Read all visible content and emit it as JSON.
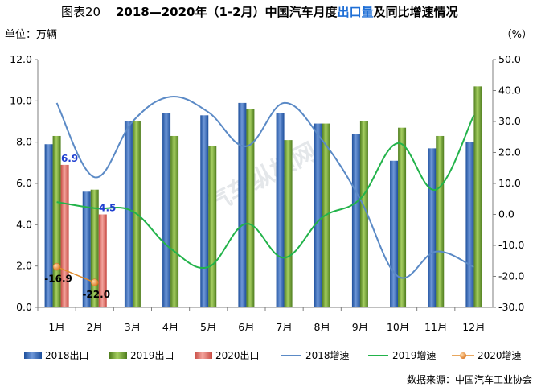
{
  "chart_data": {
    "type": "bar",
    "title_prefix": "图表20",
    "title_main": "2018—2020年（1-2月）中国汽车月度",
    "title_highlight": "出口量",
    "title_suffix": "及同比增速情况",
    "left_unit": "单位：万辆",
    "right_unit": "（%）",
    "categories": [
      "1月",
      "2月",
      "3月",
      "4月",
      "5月",
      "6月",
      "7月",
      "8月",
      "9月",
      "10月",
      "11月",
      "12月"
    ],
    "left_axis": {
      "min": 0,
      "max": 12,
      "step": 2,
      "tick_labels": [
        "0.0",
        "2.0",
        "4.0",
        "6.0",
        "8.0",
        "10.0",
        "12.0"
      ]
    },
    "right_axis": {
      "min": -30,
      "max": 50,
      "step": 10,
      "tick_labels": [
        "-30.0",
        "-20.0",
        "-10.0",
        "0.0",
        "10.0",
        "20.0",
        "30.0",
        "40.0",
        "50.0"
      ]
    },
    "bar_series": [
      {
        "name": "2018出口",
        "color": "#2e5fb0",
        "values": [
          7.9,
          5.6,
          9.0,
          9.4,
          9.3,
          9.9,
          9.4,
          8.9,
          8.4,
          7.1,
          7.7,
          8.0
        ]
      },
      {
        "name": "2019出口",
        "color": "#6a9a2c",
        "values": [
          8.3,
          5.7,
          9.0,
          8.3,
          7.8,
          9.6,
          8.1,
          8.9,
          9.0,
          8.7,
          8.3,
          10.7
        ]
      },
      {
        "name": "2020出口",
        "color": "#e0726a",
        "values": [
          6.9,
          4.5,
          null,
          null,
          null,
          null,
          null,
          null,
          null,
          null,
          null,
          null
        ]
      }
    ],
    "line_series": [
      {
        "name": "2018增速",
        "color": "#5b8ac6",
        "values": [
          36,
          12,
          30,
          38,
          33,
          22,
          36,
          24,
          5,
          -20,
          -12,
          -17
        ]
      },
      {
        "name": "2019增速",
        "color": "#22b34a",
        "values": [
          4,
          2,
          1,
          -11,
          -17,
          -3,
          -14,
          -1,
          5,
          23,
          8,
          32
        ]
      },
      {
        "name": "2020增速",
        "color": "#e08a2a",
        "values": [
          -16.9,
          -22.0,
          null,
          null,
          null,
          null,
          null,
          null,
          null,
          null,
          null,
          null
        ]
      }
    ],
    "bar_labels": [
      "6.9",
      "4.5"
    ],
    "line_labels": [
      "-16.9",
      "-22.0"
    ],
    "legend_position": "bottom",
    "grid": false
  },
  "source": "数据来源：中国汽车工业协会",
  "watermark": "汽车纵横网"
}
